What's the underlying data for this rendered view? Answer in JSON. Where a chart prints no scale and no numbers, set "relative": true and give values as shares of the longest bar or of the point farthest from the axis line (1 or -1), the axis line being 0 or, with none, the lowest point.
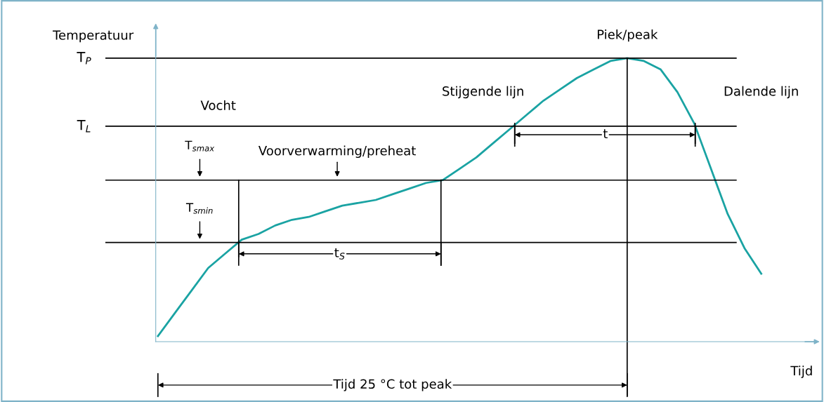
{
  "chart_data": {
    "type": "line",
    "relative": true,
    "ylabel": "Temperatuur",
    "xlabel": "Tijd",
    "categories": [
      null,
      null,
      null,
      null,
      null,
      null,
      null,
      null,
      null,
      null,
      null,
      null,
      null,
      null,
      null,
      null,
      null,
      null,
      null,
      null,
      null,
      null,
      null,
      null,
      null,
      null,
      null,
      null,
      null,
      null,
      null,
      null,
      null,
      null,
      null,
      null,
      null
    ],
    "series": [
      {
        "color": "#1aa3a3",
        "values": [
          0.02,
          0.1,
          0.18,
          0.26,
          0.31,
          0.36,
          0.38,
          0.41,
          0.43,
          0.44,
          0.46,
          0.48,
          0.49,
          0.5,
          0.52,
          0.54,
          0.56,
          0.57,
          0.61,
          0.65,
          0.7,
          0.75,
          0.8,
          0.85,
          0.89,
          0.93,
          0.96,
          0.99,
          1,
          0.99,
          0.96,
          0.88,
          0.77,
          0.61,
          0.45,
          0.33,
          0.24
        ]
      }
    ],
    "ref_lines": [
      {
        "axis": "y",
        "value": 1,
        "label": "T$_{P}$",
        "color": "#000000"
      },
      {
        "axis": "y",
        "value": 0.76,
        "label": "T$_{L}$",
        "color": "#000000"
      },
      {
        "axis": "y",
        "value": 0.57,
        "label": "T$_{smax}$",
        "color": "#000000"
      },
      {
        "axis": "y",
        "value": 0.35,
        "label": "T$_{smin}$",
        "color": "#000000"
      }
    ],
    "annotations": [
      "Piek/peak",
      "Stijgende lijn",
      "Dalende lijn",
      "Vocht",
      "Voorverwarming/preheat",
      "t$_{S}$",
      "t",
      "Tijd 25 °C tot peak"
    ],
    "legend": false,
    "marker": "none",
    "line_style": "solid"
  }
}
